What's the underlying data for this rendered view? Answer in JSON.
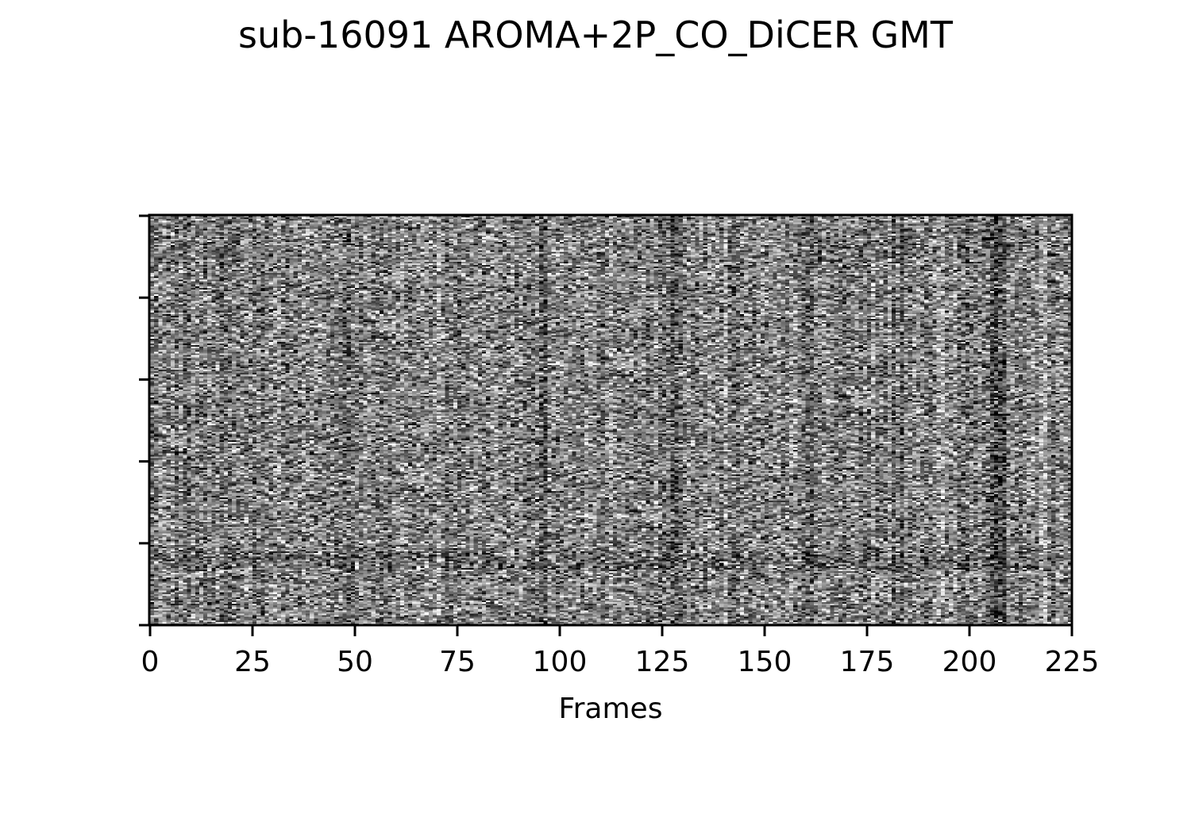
{
  "chart_data": {
    "type": "heatmap",
    "title": "sub-16091 AROMA+2P_CO_DiCER GMT",
    "xlabel": "Frames",
    "ylabel": "",
    "xlim": [
      0,
      225
    ],
    "x_ticks": [
      0,
      25,
      50,
      75,
      100,
      125,
      150,
      175,
      200,
      225
    ],
    "x_tick_labels": [
      "0",
      "25",
      "50",
      "75",
      "100",
      "125",
      "150",
      "175",
      "200",
      "225"
    ],
    "y_tick_count": 6,
    "y_tick_labels_visible": false,
    "colormap": "gray",
    "grid": false,
    "legend": "none",
    "value_range": [
      -1,
      1
    ],
    "data_description_note": "",
    "matrix_encoding": {
      "n_frames": 225,
      "n_rows": 250
    },
    "frame_effects": [
      {
        "frame": 8,
        "value": -0.25
      },
      {
        "frame": 9,
        "value": -0.25
      },
      {
        "frame": 17,
        "value": -0.15
      },
      {
        "frame": 30,
        "value": 0.2
      },
      {
        "frame": 31,
        "value": 0.2
      },
      {
        "frame": 47,
        "value": -0.3
      },
      {
        "frame": 48,
        "value": -0.25
      },
      {
        "frame": 55,
        "value": -0.1
      },
      {
        "frame": 70,
        "value": 0.15
      },
      {
        "frame": 88,
        "value": 0.15
      },
      {
        "frame": 93,
        "value": -0.1
      },
      {
        "frame": 95,
        "value": -0.25
      },
      {
        "frame": 96,
        "value": -0.25
      },
      {
        "frame": 105,
        "value": -0.15
      },
      {
        "frame": 112,
        "value": 0.15
      },
      {
        "frame": 127,
        "value": -0.3
      },
      {
        "frame": 128,
        "value": -0.3
      },
      {
        "frame": 140,
        "value": 0.2
      },
      {
        "frame": 150,
        "value": -0.2
      },
      {
        "frame": 160,
        "value": -0.2
      },
      {
        "frame": 161,
        "value": -0.2
      },
      {
        "frame": 176,
        "value": 0.15
      },
      {
        "frame": 181,
        "value": -0.25
      },
      {
        "frame": 183,
        "value": -0.2
      },
      {
        "frame": 192,
        "value": 0.25
      },
      {
        "frame": 193,
        "value": 0.25
      },
      {
        "frame": 205,
        "value": -0.3
      },
      {
        "frame": 206,
        "value": -0.35
      },
      {
        "frame": 207,
        "value": -0.35
      },
      {
        "frame": 208,
        "value": -0.3
      },
      {
        "frame": 217,
        "value": 0.3
      },
      {
        "frame": 218,
        "value": 0.3
      }
    ],
    "row_band_effects": [
      {
        "rows": [
          205,
          215
        ],
        "value": -0.35,
        "note": ""
      },
      {
        "rows": [
          8,
          25
        ],
        "frames": [
          155,
          225
        ],
        "value": -0.15,
        "note": ""
      }
    ]
  }
}
